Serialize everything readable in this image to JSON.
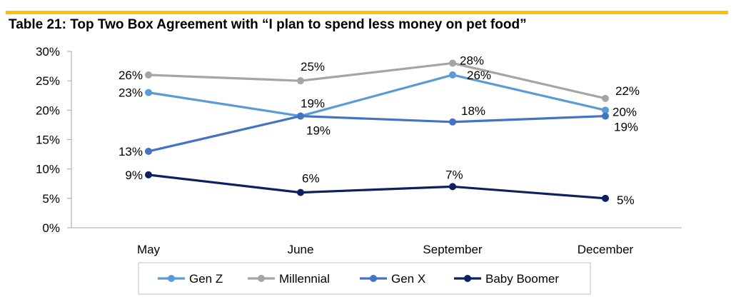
{
  "chart_data": {
    "type": "line",
    "title": "Table 21: Top Two Box Agreement with “I plan to spend less money on pet food”",
    "categories": [
      "May",
      "June",
      "September",
      "December"
    ],
    "ylim": [
      0,
      30
    ],
    "yticks": [
      0,
      5,
      10,
      15,
      20,
      25,
      30
    ],
    "ytick_format": "percent",
    "grid": false,
    "legend_position": "bottom",
    "series": [
      {
        "name": "Gen Z",
        "values": [
          23,
          19,
          26,
          20
        ],
        "color": "#5b9bd5"
      },
      {
        "name": "Millennial",
        "values": [
          26,
          25,
          28,
          22
        ],
        "color": "#a5a5a5"
      },
      {
        "name": "Gen X",
        "values": [
          13,
          19,
          18,
          19
        ],
        "color": "#4472c4"
      },
      {
        "name": "Baby Boomer",
        "values": [
          9,
          6,
          7,
          5
        ],
        "color": "#0d2060"
      }
    ]
  },
  "colors": {
    "accent_rule": "#ffc000",
    "axis": "#a6a6a6"
  }
}
